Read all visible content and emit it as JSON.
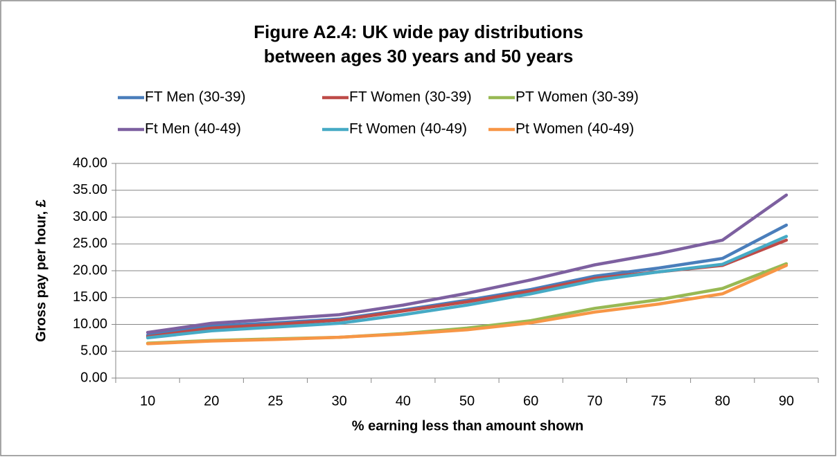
{
  "chart_data": {
    "type": "line",
    "title": [
      "Figure A2.4: UK wide pay distributions",
      "between ages 30 years and 50 years"
    ],
    "x_label": "% earning less than amount shown",
    "y_label": "Gross pay per hour, £",
    "categories": [
      "10",
      "20",
      "25",
      "30",
      "40",
      "50",
      "60",
      "70",
      "75",
      "80",
      "90"
    ],
    "series": [
      {
        "name": "FT Men (30-39)",
        "color": "#4a7ebb",
        "values": [
          8.0,
          9.7,
          10.3,
          11.0,
          12.7,
          14.5,
          16.5,
          19.0,
          20.5,
          22.3,
          28.5
        ]
      },
      {
        "name": "FT Women (30-39)",
        "color": "#be4b48",
        "values": [
          7.7,
          9.3,
          10.0,
          10.8,
          12.5,
          14.2,
          16.2,
          18.6,
          19.8,
          21.0,
          25.7
        ]
      },
      {
        "name": "PT Women (30-39)",
        "color": "#98b954",
        "values": [
          6.5,
          7.0,
          7.3,
          7.6,
          8.3,
          9.3,
          10.7,
          13.0,
          14.6,
          16.7,
          21.3
        ]
      },
      {
        "name": "Ft Men (40-49)",
        "color": "#7d60a0",
        "values": [
          8.5,
          10.2,
          11.0,
          11.8,
          13.6,
          15.8,
          18.3,
          21.1,
          23.2,
          25.7,
          34.1
        ]
      },
      {
        "name": "Ft Women (40-49)",
        "color": "#46aac5",
        "values": [
          7.5,
          8.8,
          9.5,
          10.2,
          11.8,
          13.6,
          15.7,
          18.2,
          19.8,
          21.2,
          26.4
        ]
      },
      {
        "name": "Pt Women (40-49)",
        "color": "#f79646",
        "values": [
          6.4,
          6.9,
          7.2,
          7.6,
          8.2,
          9.0,
          10.3,
          12.3,
          13.8,
          15.7,
          21.0
        ]
      }
    ],
    "ylim": [
      0,
      40
    ],
    "yticks": [
      {
        "value": 0,
        "label": "0.00"
      },
      {
        "value": 5,
        "label": "5.00"
      },
      {
        "value": 10,
        "label": "10.00"
      },
      {
        "value": 15,
        "label": "15.00"
      },
      {
        "value": 20,
        "label": "20.00"
      },
      {
        "value": 25,
        "label": "25.00"
      },
      {
        "value": 30,
        "label": "30.00"
      },
      {
        "value": 35,
        "label": "35.00"
      },
      {
        "value": 40,
        "label": "40.00"
      }
    ],
    "grid": true,
    "legend": "top"
  }
}
